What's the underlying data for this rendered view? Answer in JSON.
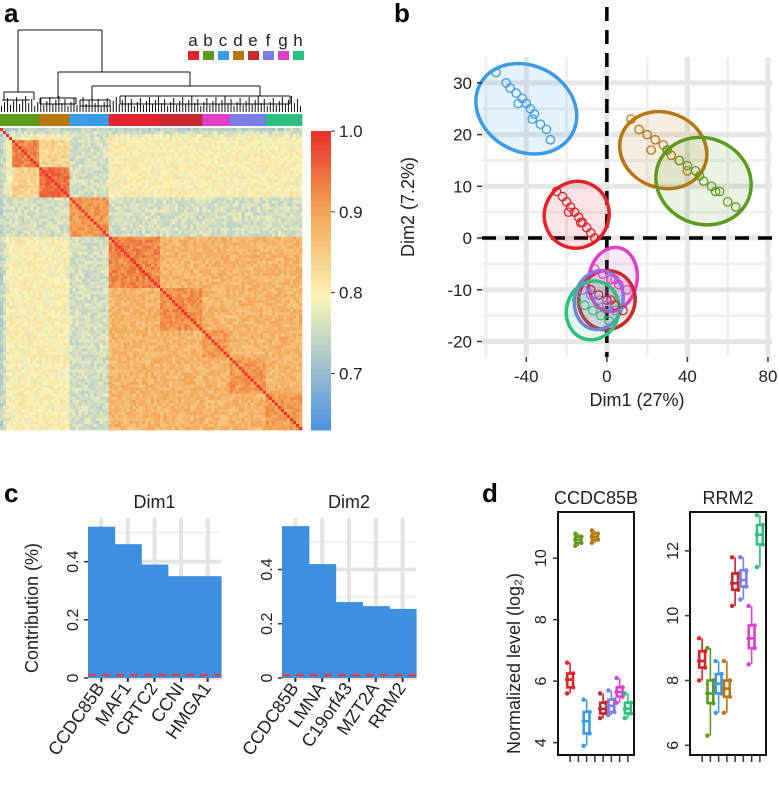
{
  "panels": {
    "a": "a",
    "b": "b",
    "c": "c",
    "d": "d"
  },
  "group_colors": {
    "a": "#e2232a",
    "b": "#5d9a1e",
    "c": "#3b9be5",
    "d": "#b8760f",
    "e": "#c9282d",
    "f": "#7b7de8",
    "g": "#e040c8",
    "h": "#2fbf7f"
  },
  "chart_data": [
    {
      "id": "a",
      "type": "heatmap",
      "title": "",
      "legend_groups": [
        "a",
        "b",
        "c",
        "d",
        "e",
        "f",
        "g",
        "h"
      ],
      "colorbar": {
        "min": 0.63,
        "max": 1.0,
        "ticks": [
          1.0,
          0.9,
          0.8,
          0.7
        ],
        "tick_labels": [
          "1.0",
          "0.9",
          "0.8",
          "0.7"
        ],
        "low_color": "#4a90e2",
        "mid_color": "#fbf4b8",
        "high_color": "#e8332a"
      },
      "sample_order_groups": [
        "b",
        "d",
        "c",
        "a",
        "e",
        "g",
        "f",
        "h"
      ],
      "dendrogram": true,
      "diagonal": 1.0
    },
    {
      "id": "b",
      "type": "scatter",
      "xlabel": "Dim1 (27%)",
      "ylabel": "Dim2 (7.2%)",
      "xlim": [
        -62,
        82
      ],
      "ylim": [
        -23,
        35
      ],
      "xticks": [
        -40,
        0,
        40,
        80
      ],
      "xtick_labels": [
        "-40",
        "0",
        "40",
        "80"
      ],
      "yticks": [
        -20,
        -10,
        0,
        10,
        20,
        30
      ],
      "ytick_labels": [
        "-20",
        "-10",
        "0",
        "10",
        "20",
        "30"
      ],
      "grid": true,
      "ellipses": [
        {
          "group": "c",
          "cx": -40,
          "cy": 25,
          "rx": 26,
          "ry": 3.2,
          "angle": -28
        },
        {
          "group": "a",
          "cx": -15,
          "cy": 4.5,
          "rx": 16,
          "ry": 2.5,
          "angle": -22
        },
        {
          "group": "d",
          "cx": 28,
          "cy": 17,
          "rx": 22,
          "ry": 2.8,
          "angle": -20
        },
        {
          "group": "b",
          "cx": 48,
          "cy": 11,
          "rx": 24,
          "ry": 3.2,
          "angle": -21
        },
        {
          "group": "g",
          "cx": 3,
          "cy": -8,
          "rx": 12,
          "ry": 2.4,
          "angle": -10
        },
        {
          "group": "e",
          "cx": 0,
          "cy": -12,
          "rx": 14,
          "ry": 2.2,
          "angle": -14
        },
        {
          "group": "f",
          "cx": -4,
          "cy": -12,
          "rx": 12,
          "ry": 2.2,
          "angle": -12
        },
        {
          "group": "h",
          "cx": -7,
          "cy": -14,
          "rx": 13,
          "ry": 2.2,
          "angle": -16
        }
      ],
      "points": [
        {
          "group": "c",
          "x": [
            -55,
            -50,
            -48,
            -45,
            -42,
            -40,
            -38,
            -36,
            -33,
            -30,
            -28,
            -44,
            -37
          ],
          "y": [
            32,
            30,
            29,
            28,
            27,
            26,
            25,
            24,
            22,
            21,
            19,
            26,
            23
          ]
        },
        {
          "group": "a",
          "x": [
            -25,
            -22,
            -20,
            -18,
            -16,
            -14,
            -12,
            -10,
            -8,
            -6,
            -19,
            -13
          ],
          "y": [
            9,
            8,
            7,
            6,
            5,
            4,
            3,
            2,
            1,
            0,
            5,
            3
          ]
        },
        {
          "group": "d",
          "x": [
            12,
            16,
            20,
            24,
            28,
            32,
            36,
            40,
            22,
            30
          ],
          "y": [
            23,
            21,
            20,
            19,
            18,
            16,
            15,
            13,
            17,
            17
          ]
        },
        {
          "group": "b",
          "x": [
            30,
            36,
            40,
            44,
            48,
            52,
            56,
            60,
            64,
            46,
            54
          ],
          "y": [
            17,
            15,
            14,
            13,
            11,
            10,
            9,
            7,
            6,
            12,
            9
          ]
        },
        {
          "group": "g",
          "x": [
            -6,
            -2,
            2,
            6,
            10,
            4
          ],
          "y": [
            -6,
            -7,
            -8,
            -9,
            -10,
            -8
          ]
        },
        {
          "group": "e",
          "x": [
            -8,
            -4,
            0,
            4,
            8,
            2
          ],
          "y": [
            -10,
            -11,
            -12,
            -13,
            -14,
            -12
          ]
        },
        {
          "group": "f",
          "x": [
            -12,
            -8,
            -4,
            0,
            4
          ],
          "y": [
            -10,
            -11,
            -12,
            -13,
            -14
          ]
        },
        {
          "group": "h",
          "x": [
            -15,
            -11,
            -7,
            -3,
            1
          ],
          "y": [
            -12,
            -13,
            -14,
            -15,
            -16
          ]
        }
      ]
    },
    {
      "id": "c1",
      "type": "bar",
      "title": "Dim1",
      "ylabel": "Contribution (%)",
      "categories": [
        "CCDC85B",
        "MAF1",
        "CRTC2",
        "CCNI",
        "HMGA1"
      ],
      "values": [
        0.52,
        0.46,
        0.39,
        0.35,
        0.35
      ],
      "ylim": [
        0,
        0.55
      ],
      "yticks": [
        0,
        0.2,
        0.4
      ],
      "ytick_labels": [
        "0",
        "0.2",
        "0.4"
      ],
      "reference_line": 0.01,
      "bar_color": "#3e8fe0"
    },
    {
      "id": "c2",
      "type": "bar",
      "title": "Dim2",
      "categories": [
        "CCDC85B",
        "LMNA",
        "C19orf43",
        "MZT2A",
        "RRM2"
      ],
      "values": [
        0.56,
        0.42,
        0.28,
        0.265,
        0.255
      ],
      "ylim": [
        0,
        0.59
      ],
      "yticks": [
        0,
        0.2,
        0.4
      ],
      "ytick_labels": [
        "0",
        "0.2",
        "0.4"
      ],
      "reference_line": 0.01,
      "bar_color": "#3e8fe0"
    },
    {
      "id": "d1",
      "type": "box",
      "title": "CCDC85B",
      "ylabel": "Normalized level (log₂)",
      "ylim": [
        3.6,
        11.5
      ],
      "yticks": [
        4,
        6,
        8,
        10
      ],
      "ytick_labels": [
        "4",
        "6",
        "8",
        "10"
      ],
      "groups": [
        "a",
        "b",
        "c",
        "d",
        "e",
        "f",
        "g",
        "h"
      ],
      "boxes": [
        {
          "group": "a",
          "min": 5.6,
          "q1": 5.8,
          "median": 6.05,
          "q3": 6.25,
          "max": 6.6
        },
        {
          "group": "b",
          "min": 10.4,
          "q1": 10.5,
          "median": 10.6,
          "q3": 10.7,
          "max": 10.8
        },
        {
          "group": "c",
          "min": 3.9,
          "q1": 4.3,
          "median": 4.7,
          "q3": 5.0,
          "max": 5.4
        },
        {
          "group": "d",
          "min": 10.5,
          "q1": 10.6,
          "median": 10.7,
          "q3": 10.8,
          "max": 10.9
        },
        {
          "group": "e",
          "min": 4.8,
          "q1": 4.95,
          "median": 5.1,
          "q3": 5.3,
          "max": 5.6
        },
        {
          "group": "f",
          "min": 4.9,
          "q1": 5.0,
          "median": 5.2,
          "q3": 5.4,
          "max": 5.7
        },
        {
          "group": "g",
          "min": 5.3,
          "q1": 5.5,
          "median": 5.65,
          "q3": 5.8,
          "max": 6.1
        },
        {
          "group": "h",
          "min": 4.8,
          "q1": 4.95,
          "median": 5.1,
          "q3": 5.3,
          "max": 5.6
        }
      ]
    },
    {
      "id": "d2",
      "type": "box",
      "title": "RRM2",
      "ylim": [
        5.7,
        13.2
      ],
      "yticks": [
        6,
        8,
        10,
        12
      ],
      "ytick_labels": [
        "6",
        "8",
        "10",
        "12"
      ],
      "groups": [
        "a",
        "b",
        "c",
        "d",
        "e",
        "f",
        "g",
        "h"
      ],
      "boxes": [
        {
          "group": "a",
          "min": 8.0,
          "q1": 8.4,
          "median": 8.6,
          "q3": 8.9,
          "max": 9.3
        },
        {
          "group": "b",
          "min": 6.3,
          "q1": 7.3,
          "median": 7.6,
          "q3": 8.0,
          "max": 9.0
        },
        {
          "group": "c",
          "min": 7.0,
          "q1": 7.6,
          "median": 7.9,
          "q3": 8.2,
          "max": 8.6
        },
        {
          "group": "d",
          "min": 7.0,
          "q1": 7.5,
          "median": 7.75,
          "q3": 8.0,
          "max": 8.6
        },
        {
          "group": "e",
          "min": 10.3,
          "q1": 10.8,
          "median": 11.0,
          "q3": 11.3,
          "max": 11.8
        },
        {
          "group": "f",
          "min": 10.5,
          "q1": 10.9,
          "median": 11.1,
          "q3": 11.4,
          "max": 11.8
        },
        {
          "group": "g",
          "min": 8.5,
          "q1": 9.0,
          "median": 9.3,
          "q3": 9.7,
          "max": 10.3
        },
        {
          "group": "h",
          "min": 11.5,
          "q1": 12.2,
          "median": 12.5,
          "q3": 12.8,
          "max": 13.1
        }
      ]
    }
  ]
}
